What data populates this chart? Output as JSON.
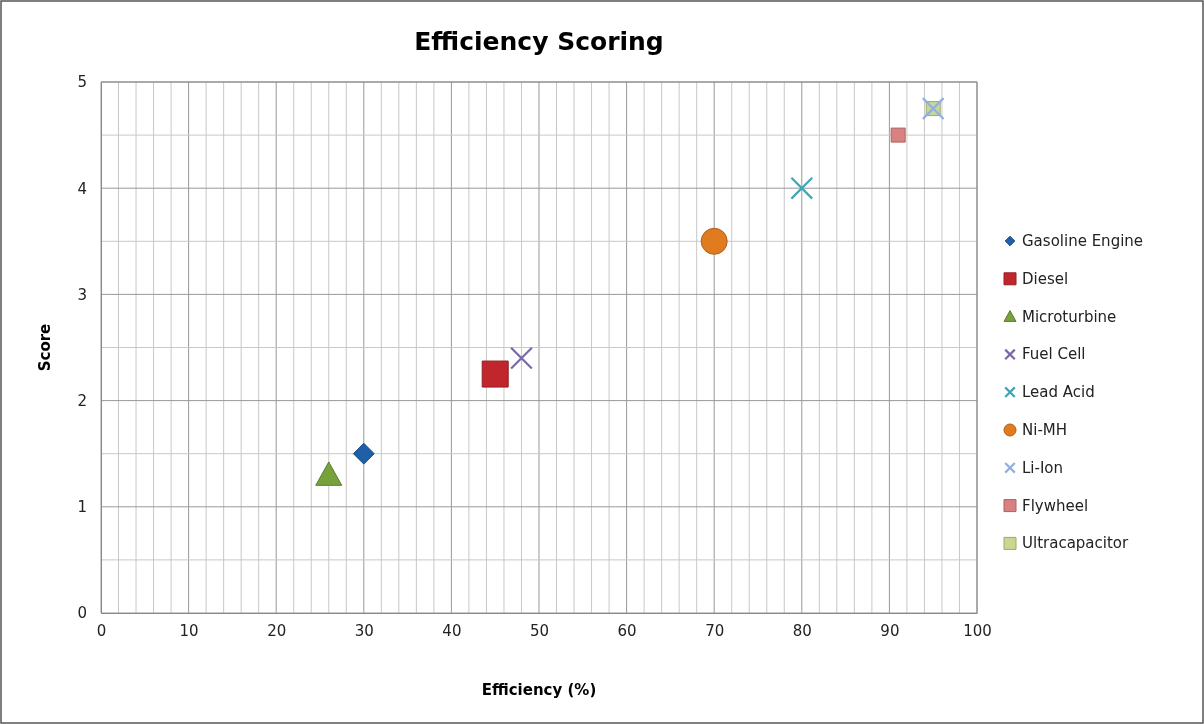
{
  "chart_data": {
    "type": "scatter",
    "title": "Efficiency Scoring",
    "xlabel": "Efficiency (%)",
    "ylabel": "Score",
    "xlim": [
      0,
      100
    ],
    "ylim": [
      0,
      5
    ],
    "xticks": [
      0,
      {
        "value": 2,
        "label": null
      },
      {
        "value": 4,
        "label": null
      },
      {
        "value": 6,
        "label": null
      },
      {
        "value": 8,
        "label": null
      },
      10,
      {
        "value": 12,
        "label": null
      },
      {
        "value": 14,
        "label": null
      },
      {
        "value": 16,
        "label": null
      },
      {
        "value": 18,
        "label": null
      },
      20,
      {
        "value": 22,
        "label": null
      },
      {
        "value": 24,
        "label": null
      },
      {
        "value": 26,
        "label": null
      },
      {
        "value": 28,
        "label": null
      },
      30,
      {
        "value": 32,
        "label": null
      },
      {
        "value": 34,
        "label": null
      },
      {
        "value": 36,
        "label": null
      },
      {
        "value": 38,
        "label": null
      },
      40,
      {
        "value": 42,
        "label": null
      },
      {
        "value": 44,
        "label": null
      },
      {
        "value": 46,
        "label": null
      },
      {
        "value": 48,
        "label": null
      },
      50,
      {
        "value": 52,
        "label": null
      },
      {
        "value": 54,
        "label": null
      },
      {
        "value": 56,
        "label": null
      },
      {
        "value": 58,
        "label": null
      },
      60,
      {
        "value": 62,
        "label": null
      },
      {
        "value": 64,
        "label": null
      },
      {
        "value": 66,
        "label": null
      },
      {
        "value": 68,
        "label": null
      },
      70,
      {
        "value": 72,
        "label": null
      },
      {
        "value": 74,
        "label": null
      },
      {
        "value": 76,
        "label": null
      },
      {
        "value": 78,
        "label": null
      },
      80,
      {
        "value": 82,
        "label": null
      },
      {
        "value": 84,
        "label": null
      },
      {
        "value": 86,
        "label": null
      },
      {
        "value": 88,
        "label": null
      },
      90,
      {
        "value": 92,
        "label": null
      },
      {
        "value": 94,
        "label": null
      },
      {
        "value": 96,
        "label": null
      },
      {
        "value": 98,
        "label": null
      },
      100
    ],
    "yticks": [
      0,
      {
        "value": 0.5,
        "label": null
      },
      1,
      {
        "value": 1.5,
        "label": null
      },
      2,
      {
        "value": 2.5,
        "label": null
      },
      3,
      {
        "value": 3.5,
        "label": null
      },
      4,
      {
        "value": 4.5,
        "label": null
      },
      5
    ],
    "grid": true,
    "legend": "right",
    "series": [
      {
        "name": "Gasoline Engine",
        "color": "#1f5fa8",
        "marker": "diamond",
        "x": [
          30
        ],
        "values": [
          1.5
        ]
      },
      {
        "name": "Diesel",
        "color": "#c0272d",
        "marker": "square",
        "x": [
          45
        ],
        "values": [
          2.25
        ]
      },
      {
        "name": "Microturbine",
        "color": "#77a13a",
        "marker": "triangle",
        "x": [
          26
        ],
        "values": [
          1.3
        ]
      },
      {
        "name": "Fuel Cell",
        "color": "#7b68a8",
        "marker": "cross",
        "x": [
          48
        ],
        "values": [
          2.4
        ]
      },
      {
        "name": "Lead Acid",
        "color": "#3fa6b8",
        "marker": "cross",
        "x": [
          80
        ],
        "values": [
          4
        ]
      },
      {
        "name": "Ni-MH",
        "color": "#e07b1f",
        "marker": "circle",
        "x": [
          70
        ],
        "values": [
          3.5
        ]
      },
      {
        "name": "Li-Ion",
        "color": "#8fb0e0",
        "marker": "cross",
        "x": [
          95
        ],
        "values": [
          4.75
        ]
      },
      {
        "name": "Flywheel",
        "color": "#d98080",
        "marker": "square",
        "x": [
          91
        ],
        "values": [
          4.5
        ]
      },
      {
        "name": "Ultracapacitor",
        "color": "#c8d890",
        "marker": "square",
        "x": [
          95
        ],
        "values": [
          4.75
        ]
      }
    ]
  }
}
